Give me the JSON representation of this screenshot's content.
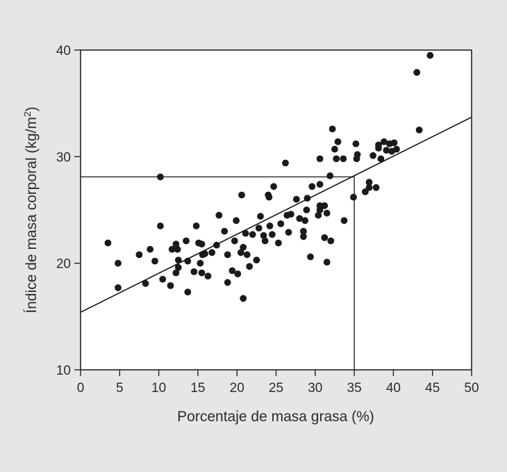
{
  "chart_data": {
    "type": "scatter",
    "title": "",
    "xlabel": "Porcentaje de masa grasa (%)",
    "ylabel_main": "Índice de masa corporal (kg/m",
    "ylabel_sup": "2",
    "ylabel_close": ")",
    "xlim": [
      0,
      50
    ],
    "ylim": [
      10,
      40
    ],
    "xticks": [
      0,
      5,
      10,
      15,
      20,
      25,
      30,
      35,
      40,
      45,
      50
    ],
    "yticks": [
      10,
      20,
      30,
      40
    ],
    "xtick_labels": [
      "0",
      "5",
      "10",
      "15",
      "20",
      "25",
      "30",
      "35",
      "40",
      "45",
      "50"
    ],
    "ytick_labels": [
      "10",
      "20",
      "30",
      "40"
    ],
    "grid": false,
    "colors": {
      "background": "#e6e6e7",
      "plot_background": "#ffffff",
      "marks": "#1a1a1a"
    },
    "regression_line": {
      "x": [
        0,
        50
      ],
      "y": [
        15.4,
        33.7
      ]
    },
    "reference_lines": {
      "x": 35,
      "y": 28.1
    },
    "points": [
      [
        3.5,
        21.9
      ],
      [
        4.8,
        20.0
      ],
      [
        4.8,
        17.7
      ],
      [
        7.5,
        20.8
      ],
      [
        8.3,
        18.1
      ],
      [
        8.9,
        21.3
      ],
      [
        9.5,
        20.2
      ],
      [
        10.2,
        23.5
      ],
      [
        10.2,
        28.1
      ],
      [
        10.5,
        18.5
      ],
      [
        11.5,
        17.9
      ],
      [
        11.7,
        21.3
      ],
      [
        12.2,
        21.8
      ],
      [
        12.2,
        19.1
      ],
      [
        12.4,
        21.3
      ],
      [
        12.5,
        20.3
      ],
      [
        12.5,
        19.6
      ],
      [
        13.5,
        22.1
      ],
      [
        13.7,
        20.2
      ],
      [
        13.7,
        17.3
      ],
      [
        14.5,
        19.2
      ],
      [
        14.8,
        23.5
      ],
      [
        15.1,
        21.9
      ],
      [
        15.3,
        20.0
      ],
      [
        15.5,
        19.1
      ],
      [
        15.5,
        21.8
      ],
      [
        15.6,
        20.8
      ],
      [
        15.9,
        20.9
      ],
      [
        16.3,
        18.8
      ],
      [
        16.8,
        21.0
      ],
      [
        17.4,
        21.7
      ],
      [
        17.7,
        24.5
      ],
      [
        18.4,
        23.0
      ],
      [
        18.8,
        20.8
      ],
      [
        18.8,
        18.2
      ],
      [
        19.4,
        19.3
      ],
      [
        19.7,
        22.1
      ],
      [
        19.9,
        24.0
      ],
      [
        20.1,
        19.0
      ],
      [
        20.5,
        21.0
      ],
      [
        20.6,
        26.4
      ],
      [
        20.8,
        21.5
      ],
      [
        20.8,
        16.7
      ],
      [
        21.1,
        22.8
      ],
      [
        21.3,
        20.8
      ],
      [
        21.6,
        19.7
      ],
      [
        22.0,
        22.7
      ],
      [
        22.5,
        20.3
      ],
      [
        22.8,
        23.3
      ],
      [
        23.0,
        24.4
      ],
      [
        23.4,
        22.6
      ],
      [
        23.6,
        22.1
      ],
      [
        24.0,
        26.4
      ],
      [
        24.1,
        26.2
      ],
      [
        24.2,
        23.5
      ],
      [
        24.5,
        22.7
      ],
      [
        24.7,
        27.2
      ],
      [
        25.3,
        21.9
      ],
      [
        25.6,
        23.7
      ],
      [
        26.2,
        29.4
      ],
      [
        26.4,
        24.5
      ],
      [
        26.6,
        22.9
      ],
      [
        26.9,
        24.6
      ],
      [
        27.6,
        26.0
      ],
      [
        28.0,
        24.2
      ],
      [
        28.5,
        23.0
      ],
      [
        28.5,
        22.5
      ],
      [
        28.7,
        24.0
      ],
      [
        28.9,
        25.0
      ],
      [
        29.0,
        26.1
      ],
      [
        29.4,
        20.6
      ],
      [
        29.6,
        27.2
      ],
      [
        30.4,
        24.5
      ],
      [
        30.6,
        25.0
      ],
      [
        30.6,
        25.4
      ],
      [
        30.6,
        27.4
      ],
      [
        30.6,
        29.8
      ],
      [
        31.2,
        25.4
      ],
      [
        31.2,
        22.4
      ],
      [
        31.5,
        20.1
      ],
      [
        31.5,
        24.7
      ],
      [
        31.9,
        28.2
      ],
      [
        32.0,
        22.1
      ],
      [
        32.2,
        32.6
      ],
      [
        32.5,
        30.7
      ],
      [
        32.7,
        29.8
      ],
      [
        32.9,
        31.4
      ],
      [
        33.6,
        29.8
      ],
      [
        33.7,
        24.0
      ],
      [
        34.9,
        26.2
      ],
      [
        35.2,
        31.2
      ],
      [
        35.3,
        29.8
      ],
      [
        35.4,
        30.2
      ],
      [
        36.4,
        26.7
      ],
      [
        36.9,
        27.1
      ],
      [
        36.9,
        27.6
      ],
      [
        37.4,
        30.1
      ],
      [
        37.8,
        27.1
      ],
      [
        38.1,
        30.8
      ],
      [
        38.1,
        31.1
      ],
      [
        38.4,
        29.8
      ],
      [
        38.8,
        31.4
      ],
      [
        39.1,
        30.6
      ],
      [
        39.5,
        31.2
      ],
      [
        39.8,
        30.5
      ],
      [
        40.1,
        31.3
      ],
      [
        40.4,
        30.7
      ],
      [
        43.0,
        37.9
      ],
      [
        43.3,
        32.5
      ],
      [
        44.7,
        39.5
      ]
    ]
  }
}
